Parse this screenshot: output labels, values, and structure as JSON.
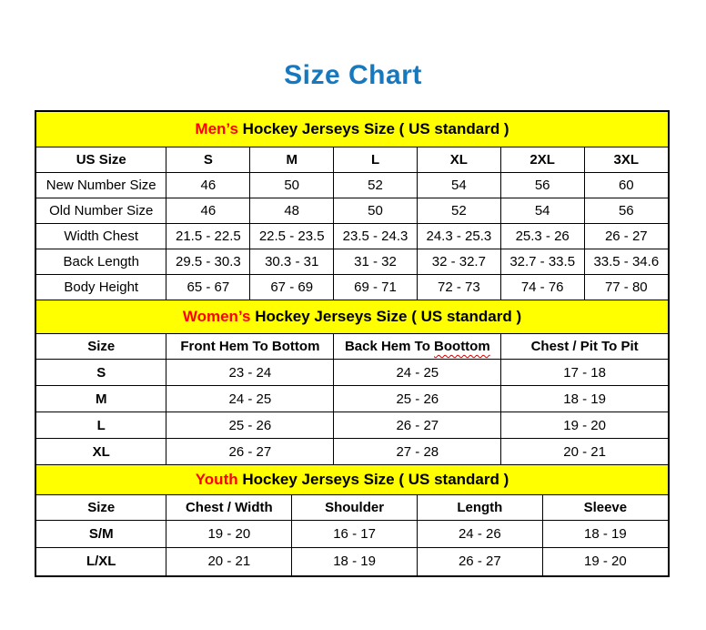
{
  "title": "Size Chart",
  "colors": {
    "title_blue": "#1778be",
    "band_yellow": "#ffff00",
    "accent_red": "#ff0000",
    "squiggle_red": "#cc0000",
    "border_black": "#000000"
  },
  "sections": [
    {
      "id": "mens",
      "band": {
        "highlight": "Men’s",
        "rest": " Hockey Jerseys Size ( US standard )"
      },
      "columns": [
        "US Size",
        "S",
        "M",
        "L",
        "XL",
        "2XL",
        "3XL"
      ],
      "rows": [
        {
          "label": "New Number Size",
          "values": [
            "46",
            "50",
            "52",
            "54",
            "56",
            "60"
          ]
        },
        {
          "label": "Old Number Size",
          "values": [
            "46",
            "48",
            "50",
            "52",
            "54",
            "56"
          ]
        },
        {
          "label": "Width Chest",
          "values": [
            "21.5 - 22.5",
            "22.5 - 23.5",
            "23.5 - 24.3",
            "24.3 - 25.3",
            "25.3 - 26",
            "26 - 27"
          ]
        },
        {
          "label": "Back Length",
          "values": [
            "29.5 - 30.3",
            "30.3 - 31",
            "31 - 32",
            "32 - 32.7",
            "32.7 - 33.5",
            "33.5 - 34.6"
          ]
        },
        {
          "label": "Body Height",
          "values": [
            "65 - 67",
            "67 - 69",
            "69 - 71",
            "72 - 73",
            "74 - 76",
            "77 - 80"
          ]
        }
      ]
    },
    {
      "id": "womens",
      "band": {
        "highlight": "Women’s",
        "rest": " Hockey Jerseys Size ( US standard )"
      },
      "columns": [
        "Size",
        "Front Hem To Bottom",
        "Back Hem To Boottom",
        "Chest / Pit To Pit"
      ],
      "squiggle_word": "Boottom",
      "rows": [
        {
          "label": "S",
          "values": [
            "23 - 24",
            "24 - 25",
            "17 - 18"
          ]
        },
        {
          "label": "M",
          "values": [
            "24 - 25",
            "25 - 26",
            "18 - 19"
          ]
        },
        {
          "label": "L",
          "values": [
            "25 - 26",
            "26 - 27",
            "19 - 20"
          ]
        },
        {
          "label": "XL",
          "values": [
            "26 - 27",
            "27 - 28",
            "20 - 21"
          ]
        }
      ]
    },
    {
      "id": "youth",
      "band": {
        "highlight": "Youth",
        "rest": " Hockey Jerseys Size ( US standard )"
      },
      "columns": [
        "Size",
        "Chest / Width",
        "Shoulder",
        "Length",
        "Sleeve"
      ],
      "rows": [
        {
          "label": "S/M",
          "values": [
            "19 - 20",
            "16 - 17",
            "24 - 26",
            "18 - 19"
          ]
        },
        {
          "label": "L/XL",
          "values": [
            "20 - 21",
            "18 - 19",
            "26 - 27",
            "19 - 20"
          ]
        }
      ]
    }
  ]
}
